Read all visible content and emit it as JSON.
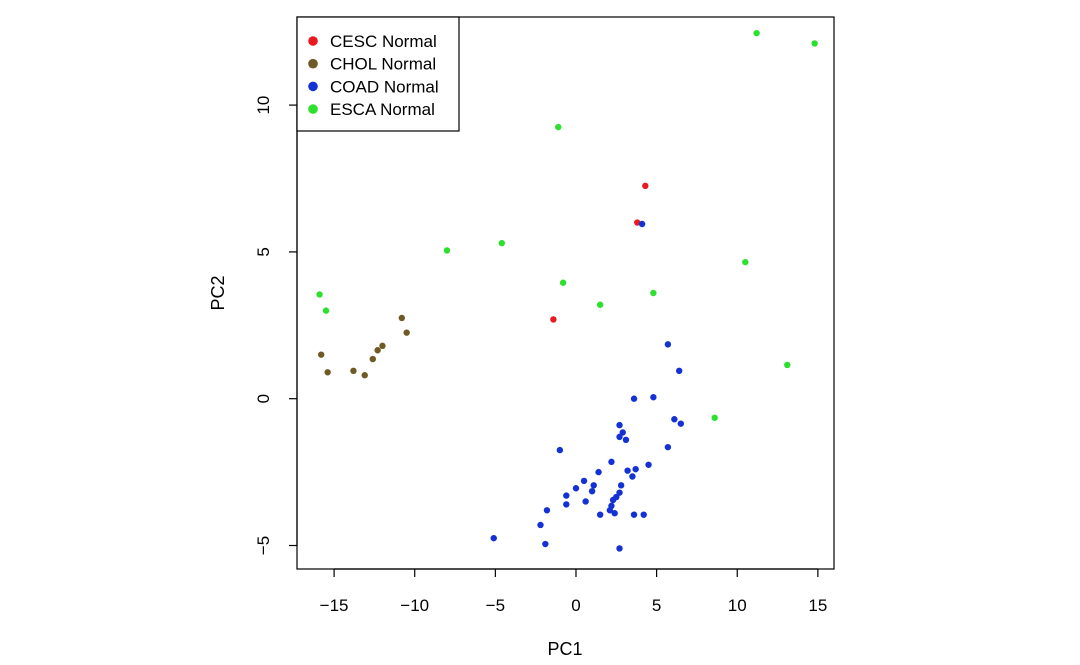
{
  "chart_data": {
    "type": "scatter",
    "title": "",
    "xlabel": "PC1",
    "ylabel": "PC2",
    "xlim": [
      -17.3,
      16
    ],
    "ylim": [
      -5.8,
      13
    ],
    "xticks": [
      -15,
      -10,
      -5,
      0,
      5,
      10,
      15
    ],
    "yticks": [
      -5,
      0,
      5,
      10
    ],
    "legend_position": "top-left",
    "series": [
      {
        "name": "CESC Normal",
        "color": "#e8191f",
        "points": [
          [
            4.3,
            7.25
          ],
          [
            3.8,
            6.0
          ],
          [
            -1.4,
            2.7
          ]
        ]
      },
      {
        "name": "CHOL Normal",
        "color": "#6e5a24",
        "points": [
          [
            -15.8,
            1.5
          ],
          [
            -15.4,
            0.9
          ],
          [
            -13.8,
            0.95
          ],
          [
            -13.1,
            0.8
          ],
          [
            -12.6,
            1.35
          ],
          [
            -12.3,
            1.65
          ],
          [
            -12.0,
            1.8
          ],
          [
            -10.8,
            2.75
          ],
          [
            -10.5,
            2.25
          ]
        ]
      },
      {
        "name": "COAD Normal",
        "color": "#1431d6",
        "points": [
          [
            4.1,
            5.95
          ],
          [
            5.7,
            1.85
          ],
          [
            6.4,
            0.95
          ],
          [
            3.6,
            0.0
          ],
          [
            4.8,
            0.05
          ],
          [
            6.1,
            -0.7
          ],
          [
            6.5,
            -0.85
          ],
          [
            2.7,
            -0.9
          ],
          [
            2.9,
            -1.15
          ],
          [
            2.7,
            -1.3
          ],
          [
            3.1,
            -1.4
          ],
          [
            5.7,
            -1.65
          ],
          [
            -1.0,
            -1.75
          ],
          [
            2.2,
            -2.15
          ],
          [
            4.5,
            -2.25
          ],
          [
            3.7,
            -2.4
          ],
          [
            3.2,
            -2.45
          ],
          [
            1.4,
            -2.5
          ],
          [
            3.5,
            -2.65
          ],
          [
            0.5,
            -2.8
          ],
          [
            2.8,
            -2.95
          ],
          [
            1.1,
            -2.95
          ],
          [
            0.0,
            -3.05
          ],
          [
            1.0,
            -3.15
          ],
          [
            2.7,
            -3.2
          ],
          [
            -0.6,
            -3.3
          ],
          [
            2.5,
            -3.35
          ],
          [
            2.3,
            -3.45
          ],
          [
            0.6,
            -3.5
          ],
          [
            -0.6,
            -3.6
          ],
          [
            2.2,
            -3.65
          ],
          [
            2.1,
            -3.8
          ],
          [
            -1.8,
            -3.8
          ],
          [
            2.4,
            -3.9
          ],
          [
            1.5,
            -3.95
          ],
          [
            3.6,
            -3.95
          ],
          [
            4.2,
            -3.95
          ],
          [
            -2.2,
            -4.3
          ],
          [
            -5.1,
            -4.75
          ],
          [
            -1.9,
            -4.95
          ],
          [
            2.7,
            -5.1
          ]
        ]
      },
      {
        "name": "ESCA Normal",
        "color": "#2ee02e",
        "points": [
          [
            11.2,
            12.45
          ],
          [
            14.8,
            12.1
          ],
          [
            -1.1,
            9.25
          ],
          [
            -8.0,
            5.05
          ],
          [
            -4.6,
            5.3
          ],
          [
            10.5,
            4.65
          ],
          [
            -0.8,
            3.95
          ],
          [
            -15.9,
            3.55
          ],
          [
            4.8,
            3.6
          ],
          [
            1.5,
            3.2
          ],
          [
            -15.5,
            3.0
          ],
          [
            13.1,
            1.15
          ],
          [
            8.6,
            -0.65
          ]
        ]
      }
    ]
  }
}
